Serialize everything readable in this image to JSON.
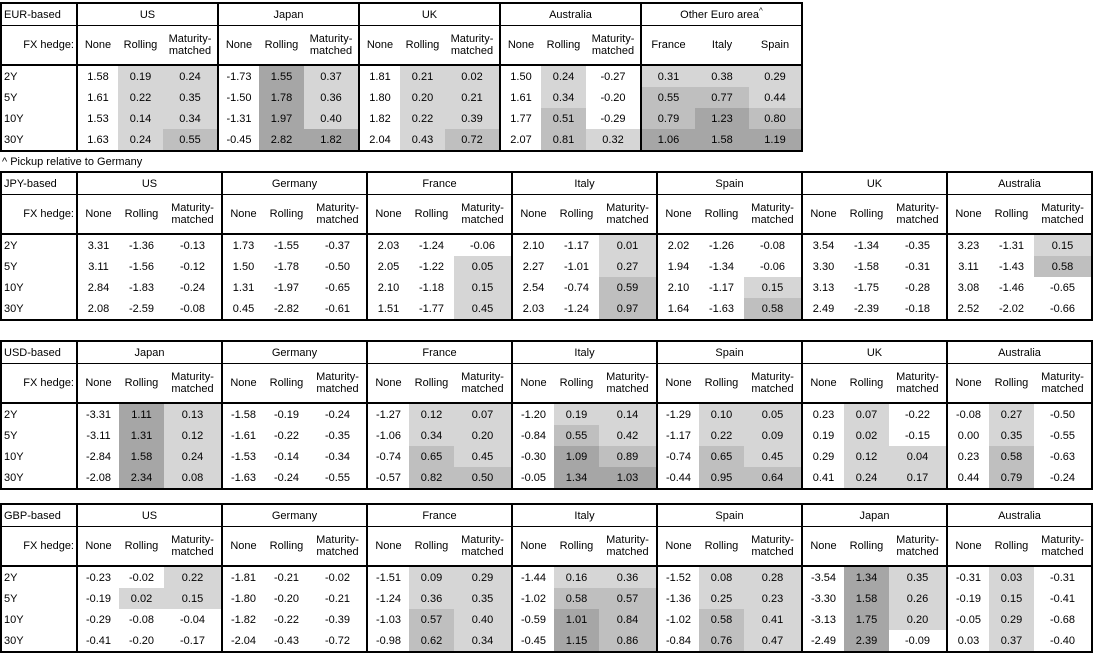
{
  "colors": {
    "shade_light": "#d6d6d6",
    "shade_medium": "#bfbfbf",
    "shade_dark": "#a6a6a6",
    "border": "#000000"
  },
  "hedge_label": "FX hedge:",
  "default_cols": [
    "None",
    "Rolling",
    "Maturity-matched"
  ],
  "row_labels": [
    "2Y",
    "5Y",
    "10Y",
    "30Y"
  ],
  "tables": [
    {
      "base_label": "EUR-based",
      "footnote": "^ Pickup relative to Germany",
      "groups": [
        {
          "country": "US",
          "shade_all": false,
          "rows": [
            [
              "1.58",
              "0.19",
              "0.24"
            ],
            [
              "1.61",
              "0.22",
              "0.35"
            ],
            [
              "1.53",
              "0.14",
              "0.34"
            ],
            [
              "1.63",
              "0.24",
              "0.55"
            ]
          ]
        },
        {
          "country": "Japan",
          "shade_all": false,
          "rows": [
            [
              "-1.73",
              "1.55",
              "0.37"
            ],
            [
              "-1.50",
              "1.78",
              "0.36"
            ],
            [
              "-1.31",
              "1.97",
              "0.40"
            ],
            [
              "-0.45",
              "2.82",
              "1.82"
            ]
          ]
        },
        {
          "country": "UK",
          "shade_all": false,
          "rows": [
            [
              "1.81",
              "0.21",
              "0.02"
            ],
            [
              "1.80",
              "0.20",
              "0.21"
            ],
            [
              "1.82",
              "0.22",
              "0.39"
            ],
            [
              "2.04",
              "0.43",
              "0.72"
            ]
          ]
        },
        {
          "country": "Australia",
          "shade_all": false,
          "rows": [
            [
              "1.50",
              "0.24",
              "-0.27"
            ],
            [
              "1.61",
              "0.34",
              "-0.20"
            ],
            [
              "1.77",
              "0.51",
              "-0.29"
            ],
            [
              "2.07",
              "0.81",
              "0.32"
            ]
          ]
        },
        {
          "country": "Other Euro area",
          "superscript": "^",
          "shade_all": true,
          "cols": [
            "France",
            "Italy",
            "Spain"
          ],
          "rows": [
            [
              "0.31",
              "0.38",
              "0.29"
            ],
            [
              "0.55",
              "0.77",
              "0.44"
            ],
            [
              "0.79",
              "1.23",
              "0.80"
            ],
            [
              "1.06",
              "1.58",
              "1.19"
            ]
          ]
        }
      ]
    },
    {
      "base_label": "JPY-based",
      "groups": [
        {
          "country": "US",
          "shade_all": false,
          "rows": [
            [
              "3.31",
              "-1.36",
              "-0.13"
            ],
            [
              "3.11",
              "-1.56",
              "-0.12"
            ],
            [
              "2.84",
              "-1.83",
              "-0.24"
            ],
            [
              "2.08",
              "-2.59",
              "-0.08"
            ]
          ]
        },
        {
          "country": "Germany",
          "shade_all": false,
          "rows": [
            [
              "1.73",
              "-1.55",
              "-0.37"
            ],
            [
              "1.50",
              "-1.78",
              "-0.50"
            ],
            [
              "1.31",
              "-1.97",
              "-0.65"
            ],
            [
              "0.45",
              "-2.82",
              "-0.61"
            ]
          ]
        },
        {
          "country": "France",
          "shade_all": false,
          "rows": [
            [
              "2.03",
              "-1.24",
              "-0.06"
            ],
            [
              "2.05",
              "-1.22",
              "0.05"
            ],
            [
              "2.10",
              "-1.18",
              "0.15"
            ],
            [
              "1.51",
              "-1.77",
              "0.45"
            ]
          ]
        },
        {
          "country": "Italy",
          "shade_all": false,
          "rows": [
            [
              "2.10",
              "-1.17",
              "0.01"
            ],
            [
              "2.27",
              "-1.01",
              "0.27"
            ],
            [
              "2.54",
              "-0.74",
              "0.59"
            ],
            [
              "2.03",
              "-1.24",
              "0.97"
            ]
          ]
        },
        {
          "country": "Spain",
          "shade_all": false,
          "rows": [
            [
              "2.02",
              "-1.26",
              "-0.08"
            ],
            [
              "1.94",
              "-1.34",
              "-0.06"
            ],
            [
              "2.10",
              "-1.17",
              "0.15"
            ],
            [
              "1.64",
              "-1.63",
              "0.58"
            ]
          ]
        },
        {
          "country": "UK",
          "shade_all": false,
          "rows": [
            [
              "3.54",
              "-1.34",
              "-0.35"
            ],
            [
              "3.30",
              "-1.58",
              "-0.31"
            ],
            [
              "3.13",
              "-1.75",
              "-0.28"
            ],
            [
              "2.49",
              "-2.39",
              "-0.18"
            ]
          ]
        },
        {
          "country": "Australia",
          "shade_all": false,
          "rows": [
            [
              "3.23",
              "-1.31",
              "0.15"
            ],
            [
              "3.11",
              "-1.43",
              "0.58"
            ],
            [
              "3.08",
              "-1.46",
              "-0.65"
            ],
            [
              "2.52",
              "-2.02",
              "-0.66"
            ]
          ]
        }
      ]
    },
    {
      "base_label": "USD-based",
      "groups": [
        {
          "country": "Japan",
          "shade_all": false,
          "rows": [
            [
              "-3.31",
              "1.11",
              "0.13"
            ],
            [
              "-3.11",
              "1.31",
              "0.12"
            ],
            [
              "-2.84",
              "1.58",
              "0.24"
            ],
            [
              "-2.08",
              "2.34",
              "0.08"
            ]
          ]
        },
        {
          "country": "Germany",
          "shade_all": false,
          "rows": [
            [
              "-1.58",
              "-0.19",
              "-0.24"
            ],
            [
              "-1.61",
              "-0.22",
              "-0.35"
            ],
            [
              "-1.53",
              "-0.14",
              "-0.34"
            ],
            [
              "-1.63",
              "-0.24",
              "-0.55"
            ]
          ]
        },
        {
          "country": "France",
          "shade_all": false,
          "rows": [
            [
              "-1.27",
              "0.12",
              "0.07"
            ],
            [
              "-1.06",
              "0.34",
              "0.20"
            ],
            [
              "-0.74",
              "0.65",
              "0.45"
            ],
            [
              "-0.57",
              "0.82",
              "0.50"
            ]
          ]
        },
        {
          "country": "Italy",
          "shade_all": false,
          "rows": [
            [
              "-1.20",
              "0.19",
              "0.14"
            ],
            [
              "-0.84",
              "0.55",
              "0.42"
            ],
            [
              "-0.30",
              "1.09",
              "0.89"
            ],
            [
              "-0.05",
              "1.34",
              "1.03"
            ]
          ]
        },
        {
          "country": "Spain",
          "shade_all": false,
          "rows": [
            [
              "-1.29",
              "0.10",
              "0.05"
            ],
            [
              "-1.17",
              "0.22",
              "0.09"
            ],
            [
              "-0.74",
              "0.65",
              "0.45"
            ],
            [
              "-0.44",
              "0.95",
              "0.64"
            ]
          ]
        },
        {
          "country": "UK",
          "shade_all": false,
          "rows": [
            [
              "0.23",
              "0.07",
              "-0.22"
            ],
            [
              "0.19",
              "0.02",
              "-0.15"
            ],
            [
              "0.29",
              "0.12",
              "0.04"
            ],
            [
              "0.41",
              "0.24",
              "0.17"
            ]
          ]
        },
        {
          "country": "Australia",
          "shade_all": false,
          "rows": [
            [
              "-0.08",
              "0.27",
              "-0.50"
            ],
            [
              "0.00",
              "0.35",
              "-0.55"
            ],
            [
              "0.23",
              "0.58",
              "-0.63"
            ],
            [
              "0.44",
              "0.79",
              "-0.24"
            ]
          ]
        }
      ]
    },
    {
      "base_label": "GBP-based",
      "groups": [
        {
          "country": "US",
          "shade_all": false,
          "rows": [
            [
              "-0.23",
              "-0.02",
              "0.22"
            ],
            [
              "-0.19",
              "0.02",
              "0.15"
            ],
            [
              "-0.29",
              "-0.08",
              "-0.04"
            ],
            [
              "-0.41",
              "-0.20",
              "-0.17"
            ]
          ]
        },
        {
          "country": "Germany",
          "shade_all": false,
          "rows": [
            [
              "-1.81",
              "-0.21",
              "-0.02"
            ],
            [
              "-1.80",
              "-0.20",
              "-0.21"
            ],
            [
              "-1.82",
              "-0.22",
              "-0.39"
            ],
            [
              "-2.04",
              "-0.43",
              "-0.72"
            ]
          ]
        },
        {
          "country": "France",
          "shade_all": false,
          "rows": [
            [
              "-1.51",
              "0.09",
              "0.29"
            ],
            [
              "-1.24",
              "0.36",
              "0.35"
            ],
            [
              "-1.03",
              "0.57",
              "0.40"
            ],
            [
              "-0.98",
              "0.62",
              "0.34"
            ]
          ]
        },
        {
          "country": "Italy",
          "shade_all": false,
          "rows": [
            [
              "-1.44",
              "0.16",
              "0.36"
            ],
            [
              "-1.02",
              "0.58",
              "0.57"
            ],
            [
              "-0.59",
              "1.01",
              "0.84"
            ],
            [
              "-0.45",
              "1.15",
              "0.86"
            ]
          ]
        },
        {
          "country": "Spain",
          "shade_all": false,
          "rows": [
            [
              "-1.52",
              "0.08",
              "0.28"
            ],
            [
              "-1.36",
              "0.25",
              "0.23"
            ],
            [
              "-1.02",
              "0.58",
              "0.41"
            ],
            [
              "-0.84",
              "0.76",
              "0.47"
            ]
          ]
        },
        {
          "country": "Japan",
          "shade_all": false,
          "rows": [
            [
              "-3.54",
              "1.34",
              "0.35"
            ],
            [
              "-3.30",
              "1.58",
              "0.26"
            ],
            [
              "-3.13",
              "1.75",
              "0.20"
            ],
            [
              "-2.49",
              "2.39",
              "-0.09"
            ]
          ]
        },
        {
          "country": "Australia",
          "shade_all": false,
          "rows": [
            [
              "-0.31",
              "0.03",
              "-0.31"
            ],
            [
              "-0.19",
              "0.15",
              "-0.41"
            ],
            [
              "-0.05",
              "0.29",
              "-0.68"
            ],
            [
              "0.03",
              "0.37",
              "-0.40"
            ]
          ]
        }
      ]
    }
  ]
}
